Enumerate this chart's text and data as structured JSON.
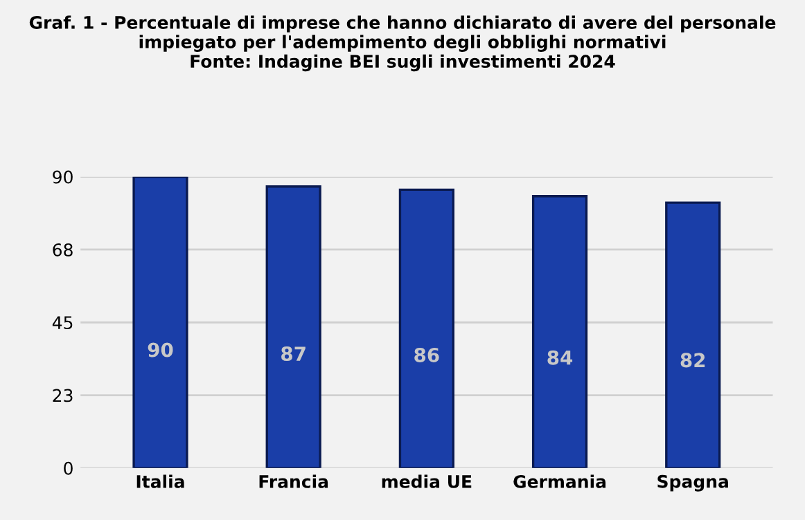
{
  "chart_data": {
    "type": "bar",
    "title": "Graf. 1 - Percentuale di imprese che hanno dichiarato di avere del personale\nimpiegato per l'adempimento degli obblighi normativi\nFonte: Indagine BEI sugli investimenti 2024",
    "categories": [
      "Italia",
      "Francia",
      "media UE",
      "Germania",
      "Spagna"
    ],
    "values": [
      90,
      87,
      86,
      84,
      82
    ],
    "color": "#1a3ea8",
    "ylim": [
      0,
      90
    ],
    "yticks": [
      0,
      {
        "value": 22.5,
        "label": "23"
      },
      45,
      {
        "value": 67.5,
        "label": "68"
      },
      90
    ],
    "grid": "y",
    "data_labels": true
  }
}
